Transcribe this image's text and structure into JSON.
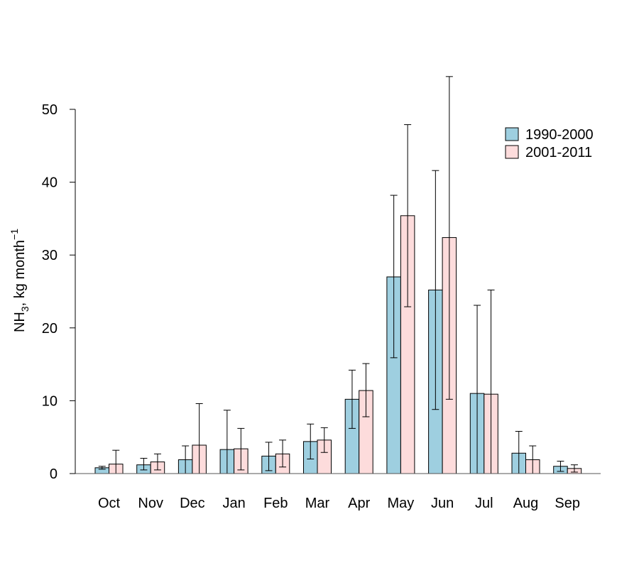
{
  "chart_data": {
    "type": "bar",
    "title": "",
    "xlabel": "",
    "ylabel": {
      "main": "NH",
      "sub": "3",
      "rest": ", kg month",
      "sup": "−1"
    },
    "ylim": [
      0,
      55
    ],
    "yticks": [
      0,
      10,
      20,
      30,
      40,
      50
    ],
    "grid": false,
    "legend_position": "top-right",
    "categories": [
      "Oct",
      "Nov",
      "Dec",
      "Jan",
      "Feb",
      "Mar",
      "Apr",
      "May",
      "Jun",
      "Jul",
      "Aug",
      "Sep"
    ],
    "series": [
      {
        "name": "1990-2000",
        "color": "#9ecfe0",
        "values": [
          0.8,
          1.2,
          1.9,
          3.3,
          2.4,
          4.4,
          10.2,
          27.0,
          25.2,
          11.0,
          2.8,
          1.0
        ],
        "error_low": [
          0.6,
          0.5,
          0.0,
          0.0,
          0.4,
          2.0,
          6.2,
          15.9,
          8.8,
          0.0,
          0.0,
          0.3
        ],
        "error_high": [
          1.0,
          2.1,
          3.8,
          8.7,
          4.3,
          6.8,
          14.2,
          38.2,
          41.6,
          23.1,
          5.8,
          1.7
        ]
      },
      {
        "name": "2001-2011",
        "color": "#fddcdc",
        "values": [
          1.3,
          1.6,
          3.9,
          3.4,
          2.7,
          4.6,
          11.4,
          35.4,
          32.4,
          10.9,
          1.9,
          0.7
        ],
        "error_low": [
          0.0,
          0.5,
          0.0,
          0.5,
          0.9,
          2.9,
          7.8,
          22.9,
          10.2,
          0.0,
          0.0,
          0.2
        ],
        "error_high": [
          3.2,
          2.7,
          9.6,
          6.2,
          4.6,
          6.3,
          15.1,
          47.9,
          54.5,
          25.2,
          3.8,
          1.2
        ]
      }
    ]
  }
}
